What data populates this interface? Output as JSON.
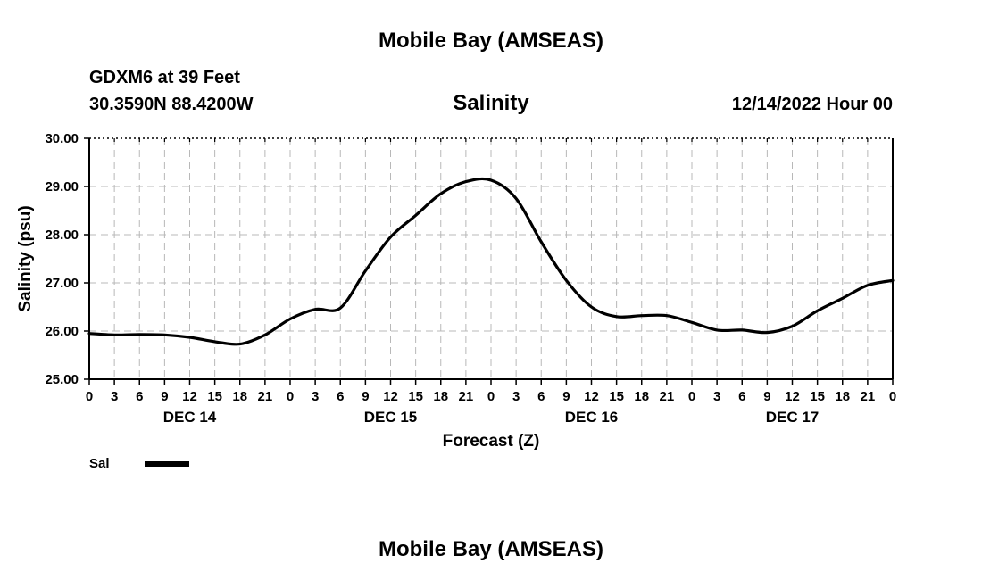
{
  "header": {
    "top_title": "Mobile Bay (AMSEAS)",
    "station": "GDXM6 at 39 Feet",
    "coords": "30.3590N  88.4200W",
    "datetime": "12/14/2022 Hour 00",
    "bottom_title": "Mobile Bay (AMSEAS)"
  },
  "legend": {
    "label": "Sal"
  },
  "chart_data": {
    "type": "line",
    "title": "Salinity",
    "xlabel": "Forecast (Z)",
    "ylabel": "Salinity (psu)",
    "ylim": [
      25,
      30
    ],
    "xlim": [
      0,
      96
    ],
    "x_unit": "hours from 12/14/2022 Hour 00",
    "grid": true,
    "legend_position": "bottom-left",
    "y_ticks": [
      "25.00",
      "26.00",
      "27.00",
      "28.00",
      "29.00",
      "30.00"
    ],
    "x_tick_labels": [
      "0",
      "3",
      "6",
      "9",
      "12",
      "15",
      "18",
      "21",
      "0",
      "3",
      "6",
      "9",
      "12",
      "15",
      "18",
      "21",
      "0",
      "3",
      "6",
      "9",
      "12",
      "15",
      "18",
      "21",
      "0",
      "3",
      "6",
      "9",
      "12",
      "15",
      "18",
      "21",
      "0"
    ],
    "day_labels": [
      {
        "label": "DEC 14",
        "hour": 12
      },
      {
        "label": "DEC 15",
        "hour": 36
      },
      {
        "label": "DEC 16",
        "hour": 60
      },
      {
        "label": "DEC 17",
        "hour": 84
      }
    ],
    "series": [
      {
        "name": "Sal",
        "color": "#000000",
        "x": [
          0,
          3,
          6,
          9,
          12,
          15,
          18,
          21,
          24,
          27,
          30,
          33,
          36,
          39,
          42,
          45,
          48,
          51,
          54,
          57,
          60,
          63,
          66,
          69,
          72,
          75,
          78,
          81,
          84,
          87,
          90,
          93,
          96
        ],
        "values": [
          25.95,
          25.92,
          25.93,
          25.92,
          25.87,
          25.78,
          25.73,
          25.92,
          26.25,
          26.45,
          26.48,
          27.25,
          27.95,
          28.4,
          28.85,
          29.1,
          29.13,
          28.75,
          27.85,
          27.05,
          26.5,
          26.3,
          26.32,
          26.32,
          26.18,
          26.02,
          26.02,
          25.97,
          26.1,
          26.42,
          26.68,
          26.95,
          27.05
        ]
      }
    ]
  }
}
